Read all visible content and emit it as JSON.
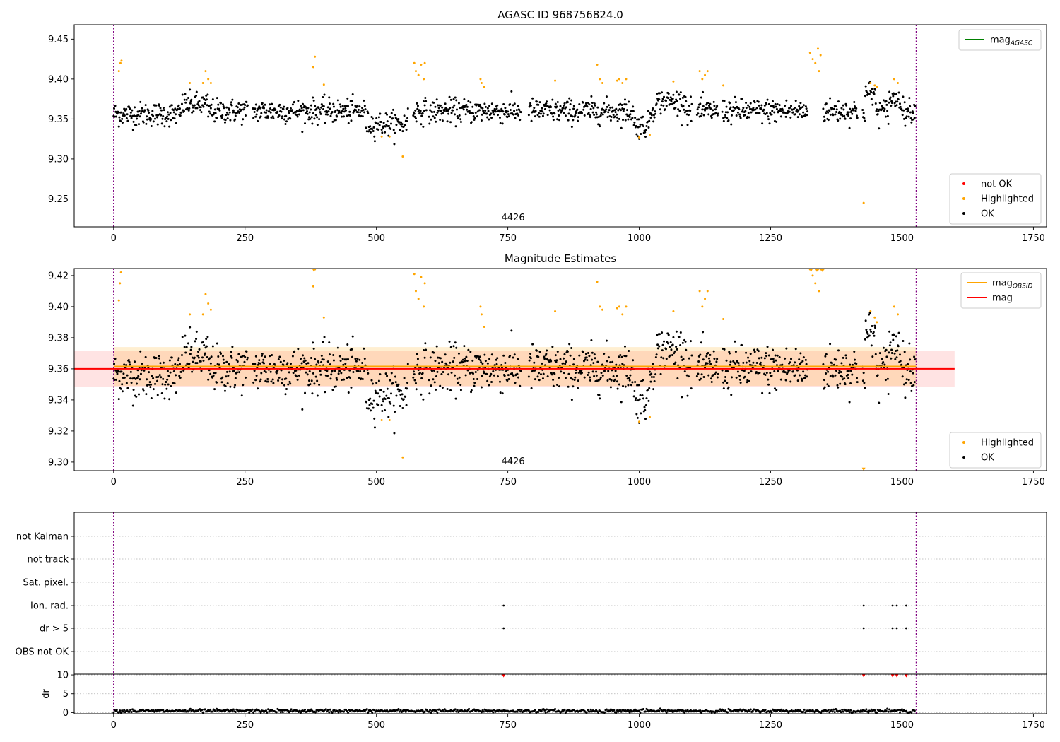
{
  "chart_data": [
    {
      "type": "scatter",
      "title": "AGASC ID 968756824.0",
      "xlim": [
        -75,
        1775
      ],
      "ylim": [
        9.215,
        9.468
      ],
      "xticks": [
        0,
        250,
        500,
        750,
        1000,
        1250,
        1500,
        1750
      ],
      "yticks": [
        9.25,
        9.3,
        9.35,
        9.4,
        9.45
      ],
      "ytick_labels": [
        "9.25",
        "9.30",
        "9.35",
        "9.40",
        "9.45"
      ],
      "obsid_label": {
        "text": "4426",
        "x": 760
      },
      "vlines": [
        0,
        1527
      ],
      "legend_lines": [
        {
          "name": "mag",
          "sub": "AGASC",
          "color": "#008000"
        }
      ],
      "legend_points": [
        {
          "name": "not OK",
          "color": "#ff0000"
        },
        {
          "name": "Highlighted",
          "color": "#ffa500"
        },
        {
          "name": "OK",
          "color": "#000000"
        }
      ],
      "series": [
        {
          "name": "OK",
          "color": "#000000",
          "profile": "top"
        },
        {
          "name": "Highlighted",
          "color": "#ffa500",
          "points": [
            [
              10,
              9.41
            ],
            [
              13,
              9.42
            ],
            [
              15,
              9.423
            ],
            [
              145,
              9.395
            ],
            [
              170,
              9.395
            ],
            [
              175,
              9.41
            ],
            [
              180,
              9.4
            ],
            [
              185,
              9.395
            ],
            [
              380,
              9.415
            ],
            [
              383,
              9.428
            ],
            [
              400,
              9.393
            ],
            [
              510,
              9.328
            ],
            [
              525,
              9.328
            ],
            [
              550,
              9.303
            ],
            [
              572,
              9.42
            ],
            [
              575,
              9.41
            ],
            [
              580,
              9.405
            ],
            [
              585,
              9.418
            ],
            [
              590,
              9.4
            ],
            [
              592,
              9.42
            ],
            [
              698,
              9.4
            ],
            [
              700,
              9.395
            ],
            [
              705,
              9.39
            ],
            [
              840,
              9.398
            ],
            [
              920,
              9.418
            ],
            [
              925,
              9.4
            ],
            [
              930,
              9.395
            ],
            [
              958,
              9.398
            ],
            [
              962,
              9.4
            ],
            [
              968,
              9.395
            ],
            [
              975,
              9.4
            ],
            [
              1000,
              9.327
            ],
            [
              1020,
              9.33
            ],
            [
              1065,
              9.397
            ],
            [
              1115,
              9.41
            ],
            [
              1120,
              9.4
            ],
            [
              1125,
              9.405
            ],
            [
              1130,
              9.41
            ],
            [
              1160,
              9.392
            ],
            [
              1325,
              9.433
            ],
            [
              1330,
              9.425
            ],
            [
              1335,
              9.42
            ],
            [
              1340,
              9.438
            ],
            [
              1342,
              9.41
            ],
            [
              1345,
              9.43
            ],
            [
              1427,
              9.245
            ],
            [
              1440,
              9.395
            ],
            [
              1448,
              9.392
            ],
            [
              1452,
              9.39
            ],
            [
              1485,
              9.4
            ],
            [
              1492,
              9.395
            ]
          ]
        }
      ]
    },
    {
      "type": "scatter",
      "title": "Magnitude Estimates",
      "xlim": [
        -75,
        1775
      ],
      "ylim": [
        9.2945,
        9.4245
      ],
      "xticks": [
        0,
        250,
        500,
        750,
        1000,
        1250,
        1500,
        1750
      ],
      "yticks": [
        9.3,
        9.32,
        9.34,
        9.36,
        9.38,
        9.4,
        9.42
      ],
      "ytick_labels": [
        "9.30",
        "9.32",
        "9.34",
        "9.36",
        "9.38",
        "9.40",
        "9.42"
      ],
      "obsid_label": {
        "text": "4426",
        "x": 760
      },
      "vlines": [
        0,
        1527
      ],
      "mag": {
        "value": 9.36,
        "err": 0.0115,
        "x_range": [
          -75,
          1600
        ],
        "color": "#ff0000"
      },
      "mag_obsid": {
        "value": 9.3615,
        "err": 0.0125,
        "x_range": [
          0,
          1527
        ],
        "color": "#ffa500"
      },
      "legend_lines": [
        {
          "name": "mag",
          "sub": "OBSID",
          "color": "#ffa500"
        },
        {
          "name": "mag",
          "sub": "",
          "color": "#ff0000"
        }
      ],
      "legend_points": [
        {
          "name": "Highlighted",
          "color": "#ffa500"
        },
        {
          "name": "OK",
          "color": "#000000"
        }
      ],
      "series": [
        {
          "name": "OK",
          "color": "#000000",
          "profile": "mid"
        },
        {
          "name": "Highlighted",
          "color": "#ffa500",
          "points": [
            [
              10,
              9.404
            ],
            [
              12,
              9.415
            ],
            [
              14,
              9.422
            ],
            [
              145,
              9.395
            ],
            [
              170,
              9.395
            ],
            [
              175,
              9.408
            ],
            [
              180,
              9.402
            ],
            [
              185,
              9.398
            ],
            [
              380,
              9.413
            ],
            [
              383,
              9.424
            ],
            [
              400,
              9.393
            ],
            [
              510,
              9.327
            ],
            [
              525,
              9.327
            ],
            [
              550,
              9.303
            ],
            [
              572,
              9.421
            ],
            [
              575,
              9.41
            ],
            [
              580,
              9.405
            ],
            [
              585,
              9.419
            ],
            [
              590,
              9.4
            ],
            [
              592,
              9.415
            ],
            [
              698,
              9.4
            ],
            [
              700,
              9.395
            ],
            [
              705,
              9.387
            ],
            [
              840,
              9.397
            ],
            [
              920,
              9.416
            ],
            [
              925,
              9.4
            ],
            [
              930,
              9.398
            ],
            [
              958,
              9.399
            ],
            [
              962,
              9.4
            ],
            [
              968,
              9.395
            ],
            [
              975,
              9.4
            ],
            [
              1000,
              9.326
            ],
            [
              1020,
              9.329
            ],
            [
              1065,
              9.397
            ],
            [
              1115,
              9.41
            ],
            [
              1120,
              9.4
            ],
            [
              1125,
              9.405
            ],
            [
              1130,
              9.41
            ],
            [
              1160,
              9.392
            ],
            [
              1325,
              9.424
            ],
            [
              1330,
              9.42
            ],
            [
              1335,
              9.415
            ],
            [
              1340,
              9.424
            ],
            [
              1342,
              9.41
            ],
            [
              1345,
              9.424
            ],
            [
              1350,
              9.424
            ],
            [
              1440,
              9.397
            ],
            [
              1448,
              9.393
            ],
            [
              1452,
              9.39
            ],
            [
              1485,
              9.4
            ],
            [
              1492,
              9.395
            ]
          ]
        },
        {
          "name": "Highlighted",
          "marker": "triangle",
          "color": "#ffa500",
          "points": [
            [
              1427,
              9.2955
            ],
            [
              381,
              9.4235
            ],
            [
              1327,
              9.4235
            ],
            [
              1338,
              9.4235
            ],
            [
              1348,
              9.4235
            ]
          ]
        }
      ]
    },
    {
      "type": "scatter",
      "title": "",
      "categories": [
        "not Kalman",
        "not track",
        "Sat. pixel.",
        "Ion. rad.",
        "dr > 5",
        "OBS not OK"
      ],
      "xlim": [
        -75,
        1775
      ],
      "flags": [
        {
          "category": "Ion. rad.",
          "x": [
            742,
            1427,
            1482,
            1490,
            1508
          ]
        },
        {
          "category": "dr > 5",
          "x": [
            742,
            1427,
            1482,
            1490,
            1508
          ]
        }
      ],
      "vlines": [
        0,
        1527
      ]
    },
    {
      "type": "scatter",
      "title": "",
      "ylabel": "dr",
      "xlim": [
        -75,
        1775
      ],
      "ylim": [
        -0.3,
        10.2
      ],
      "yticks": [
        0,
        5,
        10
      ],
      "ytick_labels": [
        "0",
        "5",
        "10"
      ],
      "xticks": [
        0,
        250,
        500,
        750,
        1000,
        1250,
        1500,
        1750
      ],
      "vlines": [
        0,
        1527
      ],
      "series": [
        {
          "name": "dr",
          "color": "#000000",
          "profile": "dr"
        },
        {
          "name": "dr > 10",
          "marker": "triangle",
          "color": "#ff0000",
          "points": [
            [
              742,
              9.8
            ],
            [
              1427,
              9.8
            ],
            [
              1482,
              9.8
            ],
            [
              1490,
              9.8
            ],
            [
              1508,
              9.8
            ]
          ]
        }
      ]
    }
  ]
}
